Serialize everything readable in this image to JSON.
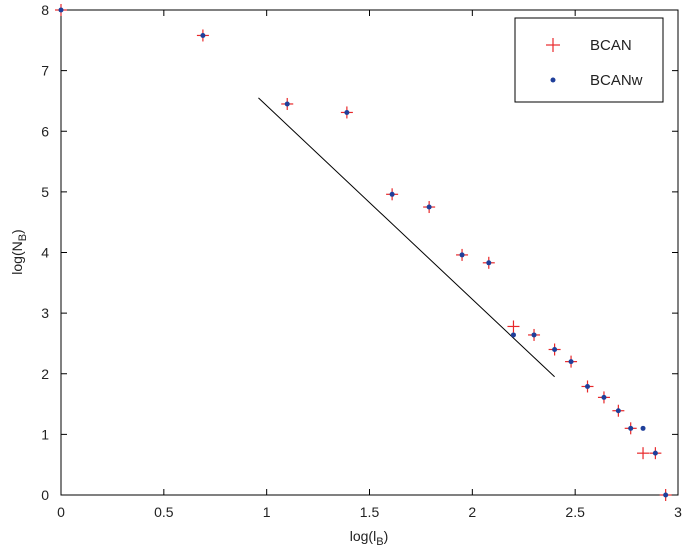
{
  "chart_data": {
    "type": "scatter",
    "xlabel": "log(l",
    "xlabel_sub": "B",
    "xlabel_end": ")",
    "ylabel": "log(N",
    "ylabel_sub": "B",
    "ylabel_end": ")",
    "xlim": [
      0,
      3
    ],
    "ylim": [
      0,
      8
    ],
    "xticks": [
      0,
      0.5,
      1,
      1.5,
      2,
      2.5,
      3
    ],
    "yticks": [
      0,
      1,
      2,
      3,
      4,
      5,
      6,
      7,
      8
    ],
    "xtick_labels": [
      "0",
      "0.5",
      "1",
      "1.5",
      "2",
      "2.5",
      "3"
    ],
    "ytick_labels": [
      "0",
      "1",
      "2",
      "3",
      "4",
      "5",
      "6",
      "7",
      "8"
    ],
    "legend_position": "top-right",
    "series": [
      {
        "name": "BCAN",
        "marker": "plus",
        "color": "#e8282a",
        "points": [
          [
            0,
            8.0
          ],
          [
            0.69,
            7.58
          ],
          [
            1.1,
            6.45
          ],
          [
            1.39,
            6.31
          ],
          [
            1.61,
            4.96
          ],
          [
            1.79,
            4.75
          ],
          [
            1.95,
            3.96
          ],
          [
            2.08,
            3.83
          ],
          [
            2.2,
            2.78
          ],
          [
            2.3,
            2.64
          ],
          [
            2.4,
            2.4
          ],
          [
            2.48,
            2.2
          ],
          [
            2.56,
            1.79
          ],
          [
            2.64,
            1.61
          ],
          [
            2.71,
            1.39
          ],
          [
            2.77,
            1.1
          ],
          [
            2.83,
            0.69
          ],
          [
            2.89,
            0.69
          ],
          [
            2.94,
            0.0
          ]
        ]
      },
      {
        "name": "BCANw",
        "marker": "dot",
        "color": "#1f3f9a",
        "points": [
          [
            0,
            8.0
          ],
          [
            0.69,
            7.58
          ],
          [
            1.1,
            6.45
          ],
          [
            1.39,
            6.31
          ],
          [
            1.61,
            4.96
          ],
          [
            1.79,
            4.75
          ],
          [
            1.95,
            3.96
          ],
          [
            2.08,
            3.83
          ],
          [
            2.2,
            2.64
          ],
          [
            2.3,
            2.64
          ],
          [
            2.4,
            2.4
          ],
          [
            2.48,
            2.2
          ],
          [
            2.56,
            1.79
          ],
          [
            2.64,
            1.61
          ],
          [
            2.71,
            1.39
          ],
          [
            2.77,
            1.1
          ],
          [
            2.83,
            1.1
          ],
          [
            2.89,
            0.69
          ],
          [
            2.94,
            0.0
          ]
        ]
      }
    ],
    "fit_line": {
      "color": "#000000",
      "points": [
        [
          0.96,
          6.55
        ],
        [
          2.4,
          1.95
        ]
      ]
    }
  }
}
